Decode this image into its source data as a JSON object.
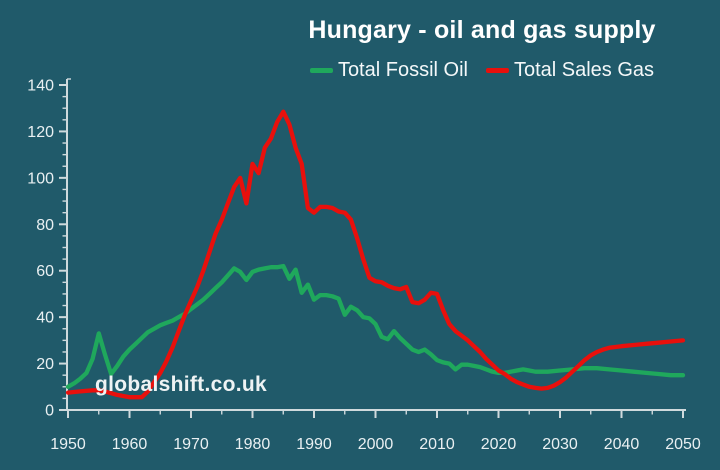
{
  "chart": {
    "title": "Hungary - oil and gas supply",
    "watermark": "globalshift.co.uk",
    "series_labels": [
      "Total Fossil Oil",
      "Total Sales Gas"
    ]
  },
  "colors": {
    "background": "#205a6a",
    "oil": "#1fa85c",
    "gas": "#e8100c",
    "axis": "#cfdadd",
    "tick_text": "#e9f0f2",
    "title_text": "#ffffff",
    "watermark_text": "#eef3f4"
  },
  "chart_data": {
    "type": "line",
    "title": "Hungary - oil and gas supply",
    "watermark": "globalshift.co.uk",
    "grid": false,
    "legend_position": "top-center",
    "x_axis": {
      "label": "",
      "min": 1950,
      "max": 2050,
      "major_tick": 10,
      "minor_tick": 5,
      "tick_labels": [
        "1950",
        "1960",
        "1970",
        "1980",
        "1990",
        "2000",
        "2010",
        "2020",
        "2030",
        "2040",
        "2050"
      ]
    },
    "y_axis": {
      "label": "",
      "min": 0,
      "max": 140,
      "major_tick": 20,
      "minor_tick": 5,
      "tick_labels": [
        "0",
        "20",
        "40",
        "60",
        "80",
        "100",
        "120",
        "140"
      ]
    },
    "series": [
      {
        "name": "Total Fossil Oil",
        "color": "#1fa85c",
        "points": [
          [
            1950,
            10
          ],
          [
            1951,
            11.5
          ],
          [
            1952,
            13.5
          ],
          [
            1953,
            16
          ],
          [
            1954,
            22
          ],
          [
            1955,
            33
          ],
          [
            1956,
            24
          ],
          [
            1957,
            15.5
          ],
          [
            1958,
            19
          ],
          [
            1959,
            23
          ],
          [
            1960,
            26
          ],
          [
            1961,
            28.5
          ],
          [
            1962,
            31
          ],
          [
            1963,
            33.5
          ],
          [
            1964,
            35
          ],
          [
            1965,
            36.5
          ],
          [
            1966,
            37.5
          ],
          [
            1967,
            38.5
          ],
          [
            1968,
            40
          ],
          [
            1969,
            41.5
          ],
          [
            1970,
            43.5
          ],
          [
            1971,
            45.5
          ],
          [
            1972,
            47.5
          ],
          [
            1973,
            50
          ],
          [
            1974,
            52.5
          ],
          [
            1975,
            55
          ],
          [
            1976,
            58
          ],
          [
            1977,
            61
          ],
          [
            1978,
            59.5
          ],
          [
            1979,
            56
          ],
          [
            1980,
            59.5
          ],
          [
            1981,
            60.5
          ],
          [
            1982,
            61
          ],
          [
            1983,
            61.5
          ],
          [
            1984,
            61.5
          ],
          [
            1985,
            62
          ],
          [
            1986,
            56.5
          ],
          [
            1987,
            60.5
          ],
          [
            1988,
            50.5
          ],
          [
            1989,
            54
          ],
          [
            1990,
            47.5
          ],
          [
            1991,
            49.5
          ],
          [
            1992,
            49.5
          ],
          [
            1993,
            49
          ],
          [
            1994,
            48
          ],
          [
            1995,
            41
          ],
          [
            1996,
            44.5
          ],
          [
            1997,
            43
          ],
          [
            1998,
            40
          ],
          [
            1999,
            39.5
          ],
          [
            2000,
            37
          ],
          [
            2001,
            31.5
          ],
          [
            2002,
            30.5
          ],
          [
            2003,
            34
          ],
          [
            2004,
            31
          ],
          [
            2005,
            28.5
          ],
          [
            2006,
            26
          ],
          [
            2007,
            25
          ],
          [
            2008,
            26
          ],
          [
            2009,
            24
          ],
          [
            2010,
            21.5
          ],
          [
            2011,
            20.5
          ],
          [
            2012,
            20
          ],
          [
            2013,
            17.5
          ],
          [
            2014,
            19.5
          ],
          [
            2015,
            19.5
          ],
          [
            2016,
            19
          ],
          [
            2017,
            18.5
          ],
          [
            2018,
            17.5
          ],
          [
            2019,
            16.5
          ],
          [
            2020,
            16
          ],
          [
            2021,
            16
          ],
          [
            2022,
            16.5
          ],
          [
            2023,
            17
          ],
          [
            2024,
            17.5
          ],
          [
            2025,
            17
          ],
          [
            2026,
            16.5
          ],
          [
            2028,
            16.5
          ],
          [
            2030,
            17
          ],
          [
            2032,
            17.5
          ],
          [
            2034,
            18
          ],
          [
            2036,
            18
          ],
          [
            2038,
            17.5
          ],
          [
            2040,
            17
          ],
          [
            2042,
            16.5
          ],
          [
            2044,
            16
          ],
          [
            2046,
            15.5
          ],
          [
            2048,
            15
          ],
          [
            2050,
            15
          ]
        ]
      },
      {
        "name": "Total Sales Gas",
        "color": "#e8100c",
        "points": [
          [
            1950,
            7.5
          ],
          [
            1952,
            8
          ],
          [
            1954,
            8.5
          ],
          [
            1955,
            8.5
          ],
          [
            1956,
            8
          ],
          [
            1958,
            6.5
          ],
          [
            1960,
            5.5
          ],
          [
            1962,
            5.5
          ],
          [
            1963,
            8
          ],
          [
            1964,
            12
          ],
          [
            1965,
            16
          ],
          [
            1966,
            21
          ],
          [
            1967,
            27
          ],
          [
            1968,
            34
          ],
          [
            1969,
            41
          ],
          [
            1970,
            47
          ],
          [
            1971,
            53
          ],
          [
            1972,
            60
          ],
          [
            1973,
            68
          ],
          [
            1974,
            76
          ],
          [
            1975,
            82
          ],
          [
            1976,
            89
          ],
          [
            1977,
            96
          ],
          [
            1978,
            100
          ],
          [
            1979,
            89
          ],
          [
            1980,
            106
          ],
          [
            1981,
            102
          ],
          [
            1982,
            113
          ],
          [
            1983,
            117
          ],
          [
            1984,
            124
          ],
          [
            1985,
            128.5
          ],
          [
            1986,
            123
          ],
          [
            1987,
            113
          ],
          [
            1988,
            106
          ],
          [
            1989,
            87
          ],
          [
            1990,
            85
          ],
          [
            1991,
            87.5
          ],
          [
            1992,
            87.5
          ],
          [
            1993,
            87
          ],
          [
            1994,
            85.5
          ],
          [
            1995,
            85
          ],
          [
            1996,
            82
          ],
          [
            1997,
            74
          ],
          [
            1998,
            65
          ],
          [
            1999,
            57
          ],
          [
            2000,
            55.5
          ],
          [
            2001,
            55
          ],
          [
            2002,
            53.5
          ],
          [
            2003,
            52.5
          ],
          [
            2004,
            52
          ],
          [
            2005,
            53
          ],
          [
            2006,
            46.5
          ],
          [
            2007,
            46
          ],
          [
            2008,
            47.5
          ],
          [
            2009,
            50.5
          ],
          [
            2010,
            50
          ],
          [
            2011,
            43
          ],
          [
            2012,
            37
          ],
          [
            2013,
            34
          ],
          [
            2014,
            32
          ],
          [
            2015,
            30
          ],
          [
            2016,
            27.5
          ],
          [
            2017,
            25
          ],
          [
            2018,
            22
          ],
          [
            2019,
            19.5
          ],
          [
            2020,
            17
          ],
          [
            2021,
            15.5
          ],
          [
            2022,
            13.5
          ],
          [
            2023,
            12
          ],
          [
            2024,
            11
          ],
          [
            2025,
            10
          ],
          [
            2026,
            9.5
          ],
          [
            2027,
            9.2
          ],
          [
            2028,
            9.5
          ],
          [
            2029,
            10.5
          ],
          [
            2030,
            12
          ],
          [
            2031,
            14
          ],
          [
            2032,
            16.5
          ],
          [
            2033,
            19
          ],
          [
            2034,
            21.5
          ],
          [
            2035,
            23.5
          ],
          [
            2036,
            25
          ],
          [
            2037,
            26
          ],
          [
            2038,
            26.8
          ],
          [
            2040,
            27.5
          ],
          [
            2042,
            28
          ],
          [
            2044,
            28.5
          ],
          [
            2046,
            29
          ],
          [
            2048,
            29.5
          ],
          [
            2050,
            30
          ]
        ]
      }
    ]
  }
}
